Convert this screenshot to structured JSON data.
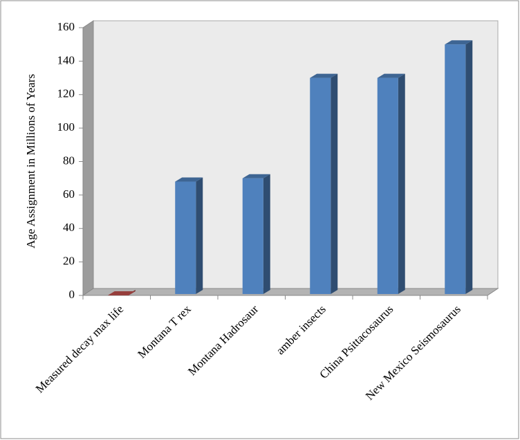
{
  "chart_data": {
    "type": "bar3d",
    "y_label": "Age Assignment in Millions of Years",
    "categories": [
      "Measured decay max life",
      "Montana T rex",
      "Montana Hadrosaur",
      "amber insects",
      "China Psittacosaurus",
      "New Mexico Seismosaurus"
    ],
    "values": [
      0,
      68,
      70,
      130,
      130,
      150
    ],
    "colors": [
      "#c0504d",
      "#4f81bd",
      "#4f81bd",
      "#4f81bd",
      "#4f81bd",
      "#4f81bd"
    ],
    "ylim": [
      0,
      160
    ],
    "yticks": [
      0,
      20,
      40,
      60,
      80,
      100,
      120,
      140,
      160
    ]
  }
}
